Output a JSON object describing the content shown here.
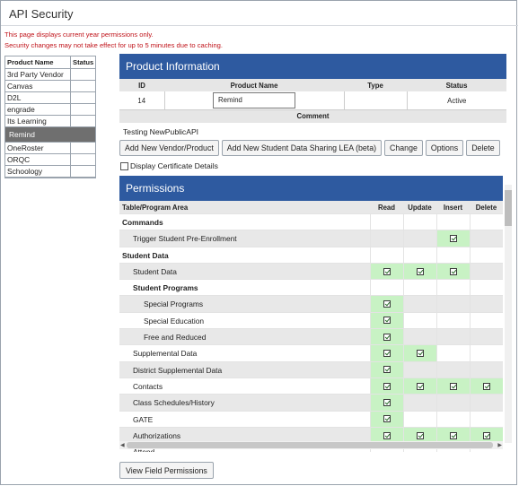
{
  "window": {
    "title": "API Security"
  },
  "warnings": {
    "line1": "This page displays current year permissions only.",
    "line2": "Security changes may not take effect for up to 5 minutes due to caching."
  },
  "vendor_list": {
    "headers": [
      "Product Name",
      "Status"
    ],
    "items": [
      "3rd Party Vendor",
      "Canvas",
      "D2L",
      "engrade",
      "Its Learning",
      "Remind",
      "OneRoster",
      "ORQC",
      "Schoology"
    ],
    "selected": "Remind"
  },
  "product_info": {
    "title": "Product Information",
    "headers": {
      "id": "ID",
      "name": "Product Name",
      "type": "Type",
      "status": "Status"
    },
    "row": {
      "id": "14",
      "name": "Remind",
      "type": "",
      "status": "Active"
    },
    "comment_header": "Comment",
    "comment": "Testing NewPublicAPI"
  },
  "buttons": {
    "add_vendor": "Add New Vendor/Product",
    "add_lea": "Add New Student Data Sharing LEA (beta)",
    "change": "Change",
    "options": "Options",
    "delete": "Delete",
    "view_field": "View Field Permissions"
  },
  "display_cert": {
    "label": "Display Certificate Details",
    "checked": false
  },
  "permissions": {
    "title": "Permissions",
    "headers": [
      "Table/Program Area",
      "Read",
      "Update",
      "Insert",
      "Delete"
    ],
    "rows": [
      {
        "label": "Commands",
        "level": 0,
        "section": true
      },
      {
        "label": "Trigger Student Pre-Enrollment",
        "level": 1,
        "read": false,
        "update": false,
        "insert": true,
        "delete": false
      },
      {
        "label": "Student Data",
        "level": 0,
        "section": true
      },
      {
        "label": "Student Data",
        "level": 1,
        "read": true,
        "update": true,
        "insert": true,
        "delete": false
      },
      {
        "label": "Student Programs",
        "level": 1,
        "subsection": true
      },
      {
        "label": "Special Programs",
        "level": 2,
        "read": true,
        "update": false,
        "insert": false,
        "delete": false
      },
      {
        "label": "Special Education",
        "level": 2,
        "read": true,
        "update": false,
        "insert": false,
        "delete": false
      },
      {
        "label": "Free and Reduced",
        "level": 2,
        "read": true,
        "update": false,
        "insert": false,
        "delete": false
      },
      {
        "label": "Supplemental Data",
        "level": 1,
        "read": true,
        "update": true,
        "insert": false,
        "delete": false
      },
      {
        "label": "District Supplemental Data",
        "level": 1,
        "read": true,
        "update": false,
        "insert": false,
        "delete": false
      },
      {
        "label": "Contacts",
        "level": 1,
        "read": true,
        "update": true,
        "insert": true,
        "delete": true
      },
      {
        "label": "Class Schedules/History",
        "level": 1,
        "read": true,
        "update": false,
        "insert": false,
        "delete": false
      },
      {
        "label": "GATE",
        "level": 1,
        "read": true,
        "update": false,
        "insert": false,
        "delete": false
      },
      {
        "label": "Authorizations",
        "level": 1,
        "read": true,
        "update": true,
        "insert": true,
        "delete": true
      },
      {
        "label": "Attend...",
        "level": 1,
        "read": false,
        "update": false,
        "insert": false,
        "delete": false
      }
    ]
  },
  "colors": {
    "band": "#2e5aa0",
    "warning": "#c0141b",
    "checked_cell": "#c8f2c4",
    "selected_row": "#6f6f6f"
  }
}
